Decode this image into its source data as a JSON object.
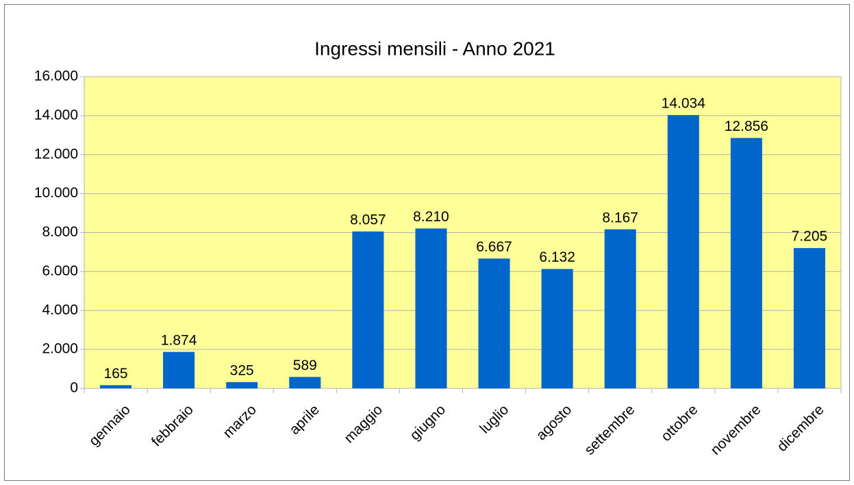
{
  "chart_data": {
    "type": "bar",
    "title": "Ingressi mensili - Anno 2021",
    "categories": [
      "gennaio",
      "febbraio",
      "marzo",
      "aprile",
      "maggio",
      "giugno",
      "luglio",
      "agosto",
      "settembre",
      "ottobre",
      "novembre",
      "dicembre"
    ],
    "values": [
      165,
      1874,
      325,
      589,
      8057,
      8210,
      6667,
      6132,
      8167,
      14034,
      12856,
      7205
    ],
    "value_labels": [
      "165",
      "1.874",
      "325",
      "589",
      "8.057",
      "8.210",
      "6.667",
      "6.132",
      "8.167",
      "14.034",
      "12.856",
      "7.205"
    ],
    "color": "#0066cc",
    "ylim": [
      0,
      16000
    ],
    "yticks": [
      0,
      {
        "value": 2000,
        "label": "2.000"
      },
      {
        "value": 4000,
        "label": "4.000"
      },
      {
        "value": 6000,
        "label": "6.000"
      },
      {
        "value": 8000,
        "label": "8.000"
      },
      {
        "value": 10000,
        "label": "10.000"
      },
      {
        "value": 12000,
        "label": "12.000"
      },
      {
        "value": 14000,
        "label": "14.000"
      },
      {
        "value": 16000,
        "label": "16.000"
      }
    ],
    "grid": true
  }
}
